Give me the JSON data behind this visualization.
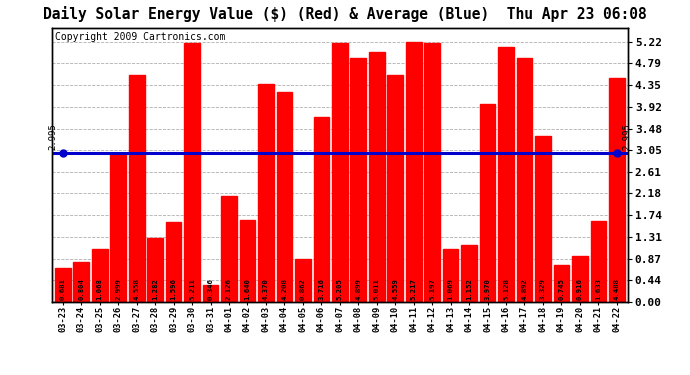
{
  "title": "Daily Solar Energy Value ($) (Red) & Average (Blue)  Thu Apr 23 06:08",
  "copyright": "Copyright 2009 Cartronics.com",
  "average": 2.995,
  "average_label": "2.995",
  "categories": [
    "03-23",
    "03-24",
    "03-25",
    "03-26",
    "03-27",
    "03-28",
    "03-29",
    "03-30",
    "03-31",
    "04-01",
    "04-02",
    "04-03",
    "04-04",
    "04-05",
    "04-06",
    "04-07",
    "04-08",
    "04-09",
    "04-10",
    "04-11",
    "04-12",
    "04-13",
    "04-14",
    "04-15",
    "04-16",
    "04-17",
    "04-18",
    "04-19",
    "04-20",
    "04-21",
    "04-22"
  ],
  "values": [
    0.681,
    0.804,
    1.068,
    2.999,
    4.558,
    1.282,
    1.596,
    5.211,
    0.346,
    2.126,
    1.64,
    4.37,
    4.208,
    0.862,
    3.716,
    5.205,
    4.899,
    5.011,
    4.559,
    5.217,
    5.197,
    1.069,
    1.152,
    3.97,
    5.128,
    4.892,
    3.329,
    0.745,
    0.916,
    1.633,
    4.488
  ],
  "bar_color": "#ff0000",
  "line_color": "#0000cc",
  "background_color": "#ffffff",
  "plot_bg_color": "#ffffff",
  "title_fontsize": 10.5,
  "copyright_fontsize": 7,
  "ymax": 5.5,
  "ymin": 0.0,
  "yticks_right": [
    5.22,
    4.79,
    4.35,
    3.92,
    3.48,
    3.05,
    2.61,
    2.18,
    1.74,
    1.31,
    0.87,
    0.44,
    0.0
  ]
}
